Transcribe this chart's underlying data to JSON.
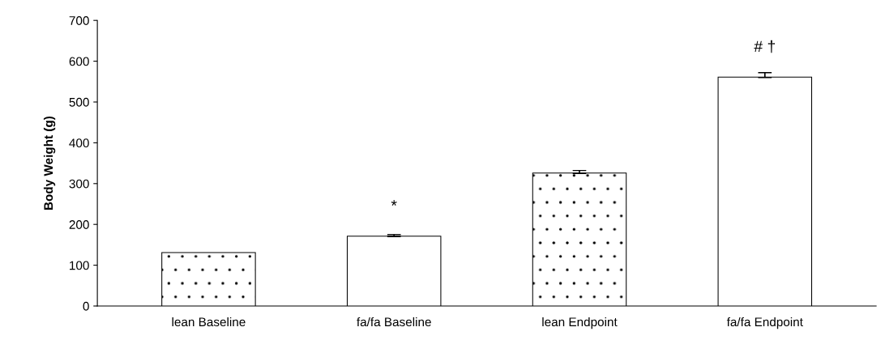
{
  "chart_data": {
    "type": "bar",
    "ylabel": "Body Weight (g)",
    "categories": [
      "lean Baseline",
      "fa/fa Baseline",
      "lean Endpoint",
      "fa/fa Endpoint"
    ],
    "values": [
      130,
      170,
      325,
      560
    ],
    "colors": [
      "#ffffff",
      "#ffffff",
      "#ffffff",
      "#ffffff"
    ],
    "errors": [
      null,
      [
        170,
        175
      ],
      [
        325,
        332
      ],
      [
        560,
        572
      ]
    ],
    "ylim": [
      0,
      700
    ],
    "yticks": [
      0,
      100,
      200,
      300,
      400,
      500,
      600,
      700
    ],
    "annotations": [
      "*",
      "# †"
    ],
    "grid": false
  }
}
